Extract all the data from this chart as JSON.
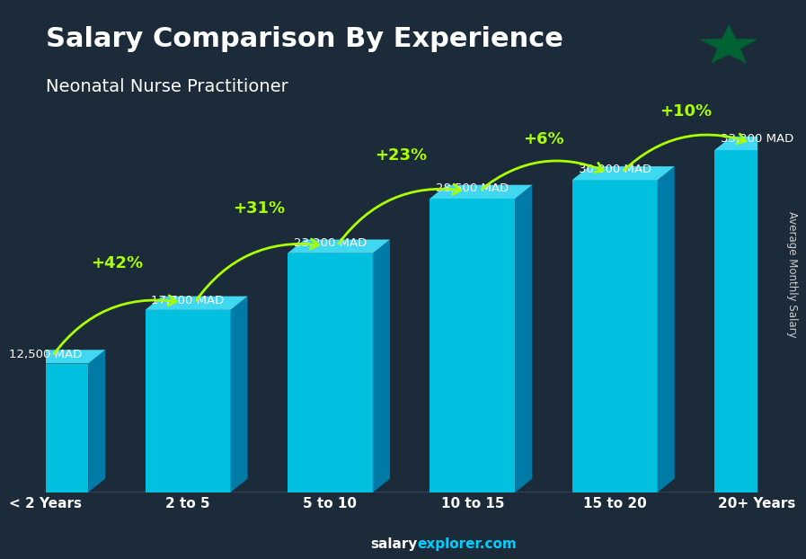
{
  "title": "Salary Comparison By Experience",
  "subtitle": "Neonatal Nurse Practitioner",
  "ylabel": "Average Monthly Salary",
  "footer": "salaryexplorer.com",
  "categories": [
    "< 2 Years",
    "2 to 5",
    "5 to 10",
    "10 to 15",
    "15 to 20",
    "20+ Years"
  ],
  "values": [
    12500,
    17700,
    23200,
    28500,
    30300,
    33200
  ],
  "value_labels": [
    "12,500 MAD",
    "17,700 MAD",
    "23,200 MAD",
    "28,500 MAD",
    "30,300 MAD",
    "33,200 MAD"
  ],
  "pct_labels": [
    "+42%",
    "+31%",
    "+23%",
    "+6%",
    "+10%"
  ],
  "bar_color_top": "#00CFFF",
  "bar_color_mid": "#00AADD",
  "bar_color_bot": "#007BB5",
  "bar_color_side": "#005A8E",
  "bg_color": "#1a2a3a",
  "title_color": "#FFFFFF",
  "subtitle_color": "#FFFFFF",
  "value_label_color": "#FFFFFF",
  "pct_color": "#AAFF00",
  "arrow_color": "#AAFF00",
  "axis_label_color": "#FFFFFF",
  "tick_color": "#FFFFFF",
  "footer_salary_color": "#FFFFFF",
  "footer_explorer_color": "#00CFFF",
  "ylim": [
    0,
    38000
  ],
  "bar_width": 0.6
}
